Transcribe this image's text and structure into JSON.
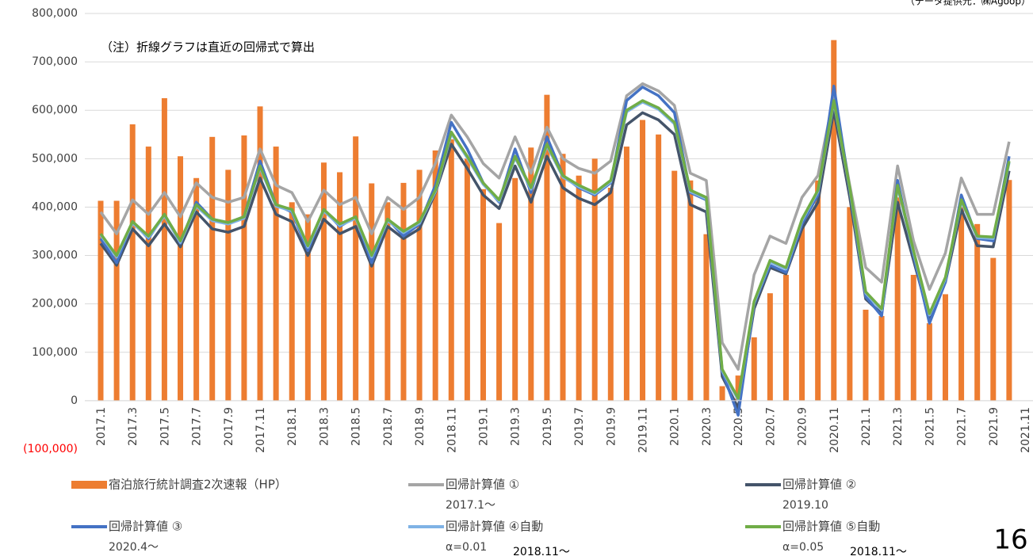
{
  "chart_data": {
    "type": "combo",
    "note": "（注）折線グラフは直近の回帰式で算出",
    "source": "（データ提供元：㈱Agoop）",
    "page_number": "16",
    "categories": [
      "2017.1",
      null,
      "2017.3",
      null,
      "2017.5",
      null,
      "2017.7",
      null,
      "2017.9",
      null,
      "2017.11",
      null,
      "2018.1",
      null,
      "2018.3",
      null,
      "2018.5",
      null,
      "2018.7",
      null,
      "2018.9",
      null,
      "2018.11",
      null,
      "2019.1",
      null,
      "2019.3",
      null,
      "2019.5",
      null,
      "2019.7",
      null,
      "2019.9",
      null,
      "2019.11",
      null,
      "2020.1",
      null,
      "2020.3",
      null,
      "2020.5",
      null,
      "2020.7",
      null,
      "2020.9",
      null,
      "2020.11",
      null,
      "2021.1",
      null,
      "2021.3",
      null,
      "2021.5",
      null,
      "2021.7",
      null,
      "2021.9",
      null,
      "2021.11"
    ],
    "ylim": [
      -100000,
      800000
    ],
    "yticks": [
      {
        "value": -100000,
        "label": "(100,000)"
      },
      0,
      {
        "value": 100000,
        "label": "100,000"
      },
      {
        "value": 200000,
        "label": "200,000"
      },
      {
        "value": 300000,
        "label": "300,000"
      },
      {
        "value": 400000,
        "label": "400,000"
      },
      {
        "value": 500000,
        "label": "500,000"
      },
      {
        "value": 600000,
        "label": "600,000"
      },
      {
        "value": 700000,
        "label": "700,000"
      },
      {
        "value": 800000,
        "label": "800,000"
      }
    ],
    "negative_label_color": "#ff0000",
    "grid": true,
    "series": [
      {
        "name": "宿泊旅行統計調査2次速報（HP）",
        "kind": "bar",
        "color": "#ED7D31",
        "notes": [],
        "values": [
          413000,
          413000,
          571000,
          525000,
          625000,
          505000,
          460000,
          545000,
          477000,
          548000,
          608000,
          525000,
          410000,
          385000,
          492000,
          472000,
          546000,
          449000,
          410000,
          450000,
          477000,
          517000,
          540000,
          500000,
          437000,
          367000,
          460000,
          523000,
          632000,
          510000,
          465000,
          500000,
          440000,
          525000,
          580000,
          550000,
          475000,
          455000,
          344000,
          30000,
          52000,
          131000,
          222000,
          260000,
          360000,
          455000,
          745000,
          400000,
          188000,
          175000,
          420000,
          260000,
          160000,
          220000,
          400000,
          365000,
          295000,
          456000,
          null
        ]
      },
      {
        "name": "回帰計算値 ①",
        "kind": "line",
        "color": "#A5A5A5",
        "notes": [
          "2017.1〜"
        ],
        "values": [
          390000,
          345000,
          415000,
          385000,
          430000,
          380000,
          450000,
          420000,
          410000,
          420000,
          520000,
          445000,
          430000,
          370000,
          435000,
          405000,
          420000,
          345000,
          420000,
          395000,
          420000,
          490000,
          590000,
          545000,
          490000,
          460000,
          545000,
          470000,
          565000,
          500000,
          480000,
          470000,
          495000,
          630000,
          655000,
          640000,
          610000,
          470000,
          455000,
          120000,
          65000,
          260000,
          340000,
          325000,
          420000,
          465000,
          630000,
          445000,
          275000,
          245000,
          485000,
          330000,
          230000,
          305000,
          460000,
          385000,
          385000,
          535000,
          null
        ]
      },
      {
        "name": "回帰計算値 ②",
        "kind": "line",
        "color": "#44546A",
        "notes": [
          "2019.10"
        ],
        "values": [
          325000,
          280000,
          355000,
          320000,
          365000,
          318000,
          390000,
          355000,
          348000,
          360000,
          460000,
          385000,
          370000,
          300000,
          375000,
          345000,
          360000,
          278000,
          360000,
          335000,
          355000,
          430000,
          530000,
          480000,
          425000,
          397000,
          485000,
          410000,
          505000,
          440000,
          418000,
          405000,
          430000,
          570000,
          595000,
          580000,
          550000,
          405000,
          390000,
          50000,
          -15000,
          190000,
          275000,
          262000,
          355000,
          410000,
          600000,
          420000,
          210000,
          180000,
          410000,
          290000,
          170000,
          245000,
          395000,
          320000,
          318000,
          475000,
          null
        ]
      },
      {
        "name": "回帰計算値 ③",
        "kind": "line",
        "color": "#4472C4",
        "notes": [
          "2020.4〜"
        ],
        "values": [
          335000,
          285000,
          370000,
          335000,
          385000,
          325000,
          410000,
          375000,
          368000,
          380000,
          495000,
          405000,
          390000,
          310000,
          395000,
          360000,
          380000,
          285000,
          375000,
          340000,
          365000,
          445000,
          575000,
          520000,
          450000,
          410000,
          520000,
          430000,
          545000,
          465000,
          440000,
          425000,
          450000,
          620000,
          648000,
          630000,
          595000,
          430000,
          415000,
          60000,
          -30000,
          200000,
          280000,
          265000,
          365000,
          425000,
          650000,
          435000,
          215000,
          175000,
          455000,
          300000,
          160000,
          245000,
          425000,
          335000,
          330000,
          505000,
          null
        ]
      },
      {
        "name": "回帰計算値 ④自動",
        "kind": "line",
        "color": "#7FB2E5",
        "notes": [
          "α=0.01",
          "2018.11〜"
        ],
        "values": [
          342000,
          297000,
          367000,
          337000,
          382000,
          327000,
          402000,
          372000,
          365000,
          377000,
          482000,
          402000,
          392000,
          317000,
          392000,
          362000,
          377000,
          297000,
          372000,
          347000,
          367000,
          432000,
          552000,
          502000,
          447000,
          412000,
          502000,
          437000,
          527000,
          462000,
          442000,
          427000,
          452000,
          597000,
          617000,
          602000,
          572000,
          432000,
          417000,
          62000,
          2000,
          202000,
          287000,
          272000,
          372000,
          432000,
          617000,
          437000,
          222000,
          187000,
          442000,
          307000,
          177000,
          252000,
          412000,
          337000,
          335000,
          492000,
          null
        ]
      },
      {
        "name": "回帰計算値 ⑤自動",
        "kind": "line",
        "color": "#70AD47",
        "notes": [
          "α=0.05",
          "2018.11〜"
        ],
        "values": [
          345000,
          300000,
          370000,
          340000,
          385000,
          330000,
          405000,
          375000,
          368000,
          380000,
          485000,
          405000,
          395000,
          320000,
          395000,
          365000,
          380000,
          300000,
          375000,
          350000,
          370000,
          435000,
          555000,
          505000,
          450000,
          415000,
          505000,
          440000,
          530000,
          465000,
          445000,
          430000,
          455000,
          600000,
          620000,
          605000,
          575000,
          435000,
          420000,
          65000,
          5000,
          205000,
          290000,
          275000,
          375000,
          435000,
          620000,
          440000,
          225000,
          190000,
          445000,
          310000,
          180000,
          255000,
          415000,
          340000,
          338000,
          495000,
          null
        ]
      }
    ]
  }
}
